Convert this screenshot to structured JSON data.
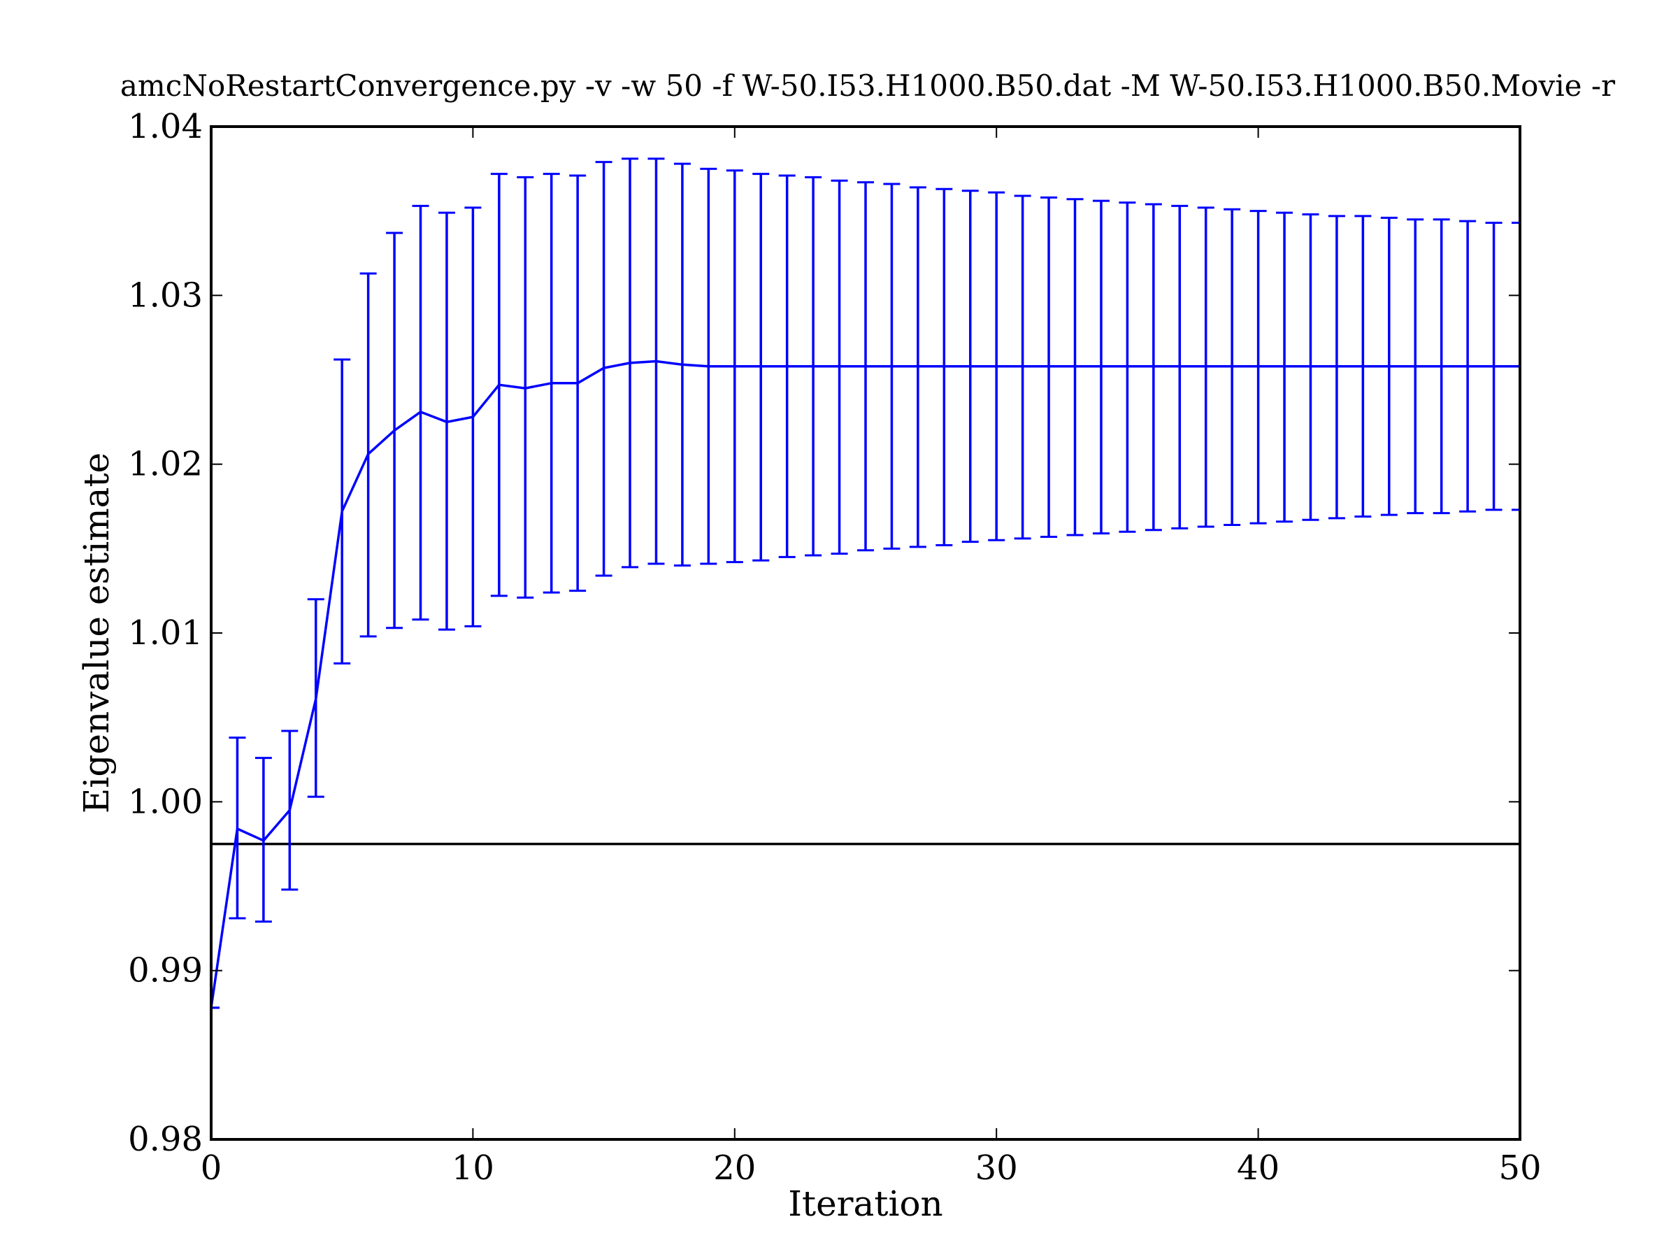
{
  "chart_data": {
    "type": "line",
    "title": "amcNoRestartConvergence.py -v -w 50 -f W-50.I53.H1000.B50.dat -M W-50.I53.H1000.B50.Movie -r",
    "xlabel": "Iteration",
    "ylabel": "Eigenvalue estimate",
    "xlim": [
      0,
      50
    ],
    "ylim": [
      0.98,
      1.04
    ],
    "x_ticks": [
      0,
      10,
      20,
      30,
      40,
      50
    ],
    "x_tick_labels": [
      "0",
      "10",
      "20",
      "30",
      "40",
      "50"
    ],
    "y_ticks": [
      0.98,
      0.99,
      1.0,
      1.01,
      1.02,
      1.03,
      1.04
    ],
    "y_tick_labels": [
      "0.98",
      "0.99",
      "1.00",
      "1.01",
      "1.02",
      "1.03",
      "1.04"
    ],
    "grid": false,
    "legend": "none",
    "colors": {
      "series": "#0000ff",
      "reference_line": "#000000",
      "axes": "#000000",
      "background": "#ffffff"
    },
    "reference_line": {
      "y": 0.9975
    },
    "series": [
      {
        "x": [
          0,
          1,
          2,
          3,
          4,
          5,
          6,
          7,
          8,
          9,
          10,
          11,
          12,
          13,
          14,
          15,
          16,
          17,
          18,
          19,
          20,
          21,
          22,
          23,
          24,
          25,
          26,
          27,
          28,
          29,
          30,
          31,
          32,
          33,
          34,
          35,
          36,
          37,
          38,
          39,
          40,
          41,
          42,
          43,
          44,
          45,
          46,
          47,
          48,
          49,
          50
        ],
        "y": [
          0.9878,
          0.9984,
          0.9977,
          0.9995,
          1.0061,
          1.0172,
          1.0206,
          1.022,
          1.0231,
          1.0225,
          1.0228,
          1.0247,
          1.0245,
          1.0248,
          1.0248,
          1.0257,
          1.026,
          1.0261,
          1.0259,
          1.0258,
          1.0258,
          1.0258,
          1.0258,
          1.0258,
          1.0258,
          1.0258,
          1.0258,
          1.0258,
          1.0258,
          1.0258,
          1.0258,
          1.0258,
          1.0258,
          1.0258,
          1.0258,
          1.0258,
          1.0258,
          1.0258,
          1.0258,
          1.0258,
          1.0258,
          1.0258,
          1.0258,
          1.0258,
          1.0258,
          1.0258,
          1.0258,
          1.0258,
          1.0258,
          1.0258,
          1.0258
        ],
        "y_lower": [
          0.9878,
          0.9931,
          0.9929,
          0.9948,
          1.0003,
          1.0082,
          1.0098,
          1.0103,
          1.0108,
          1.0102,
          1.0104,
          1.0122,
          1.0121,
          1.0124,
          1.0125,
          1.0134,
          1.0139,
          1.0141,
          1.014,
          1.0141,
          1.0142,
          1.0143,
          1.0145,
          1.0146,
          1.0147,
          1.0149,
          1.015,
          1.0151,
          1.0152,
          1.0154,
          1.0155,
          1.0156,
          1.0157,
          1.0158,
          1.0159,
          1.016,
          1.0161,
          1.0162,
          1.0163,
          1.0164,
          1.0165,
          1.0166,
          1.0167,
          1.0168,
          1.0169,
          1.017,
          1.0171,
          1.0171,
          1.0172,
          1.0173,
          1.0173
        ],
        "y_upper": [
          0.9878,
          1.0038,
          1.0026,
          1.0042,
          1.012,
          1.0262,
          1.0313,
          1.0337,
          1.0353,
          1.0349,
          1.0352,
          1.0372,
          1.037,
          1.0372,
          1.0371,
          1.0379,
          1.0381,
          1.0381,
          1.0378,
          1.0375,
          1.0374,
          1.0372,
          1.0371,
          1.037,
          1.0368,
          1.0367,
          1.0366,
          1.0364,
          1.0363,
          1.0362,
          1.0361,
          1.0359,
          1.0358,
          1.0357,
          1.0356,
          1.0355,
          1.0354,
          1.0353,
          1.0352,
          1.0351,
          1.035,
          1.0349,
          1.0348,
          1.0347,
          1.0347,
          1.0346,
          1.0345,
          1.0345,
          1.0344,
          1.0343,
          1.0343
        ]
      }
    ]
  }
}
